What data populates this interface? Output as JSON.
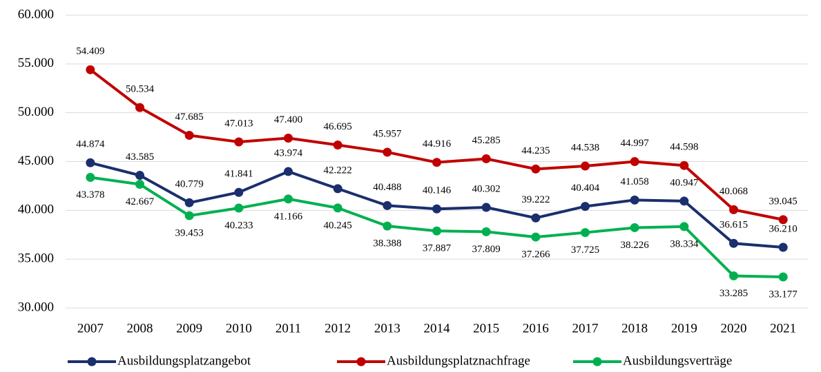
{
  "chart_data": {
    "type": "line",
    "categories": [
      "2007",
      "2008",
      "2009",
      "2010",
      "2011",
      "2012",
      "2013",
      "2014",
      "2015",
      "2016",
      "2017",
      "2018",
      "2019",
      "2020",
      "2021"
    ],
    "series": [
      {
        "name": "Ausbildungsplatzangebot",
        "color": "#1b2f6e",
        "values": [
          44874,
          43585,
          40779,
          41841,
          43974,
          42222,
          40488,
          40146,
          40302,
          39222,
          40404,
          41058,
          40947,
          36615,
          36210
        ],
        "value_labels": [
          "44.874",
          "43.585",
          "40.779",
          "41.841",
          "43.974",
          "42.222",
          "40.488",
          "40.146",
          "40.302",
          "39.222",
          "40.404",
          "41.058",
          "40.947",
          "36.615",
          "36.210"
        ]
      },
      {
        "name": "Ausbildungsplatznachfrage",
        "color": "#c00000",
        "values": [
          54409,
          50534,
          47685,
          47013,
          47400,
          46695,
          45957,
          44916,
          45285,
          44235,
          44538,
          44997,
          44598,
          40068,
          39045
        ],
        "value_labels": [
          "54.409",
          "50.534",
          "47.685",
          "47.013",
          "47.400",
          "46.695",
          "45.957",
          "44.916",
          "45.285",
          "44.235",
          "44.538",
          "44.997",
          "44.598",
          "40.068",
          "39.045"
        ]
      },
      {
        "name": "Ausbildungsverträge",
        "color": "#00b050",
        "values": [
          43378,
          42667,
          39453,
          40233,
          41166,
          40245,
          38388,
          37887,
          37809,
          37266,
          37725,
          38226,
          38334,
          33285,
          33177
        ],
        "value_labels": [
          "43.378",
          "42.667",
          "39.453",
          "40.233",
          "41.166",
          "40.245",
          "38.388",
          "37.887",
          "37.809",
          "37.266",
          "37.725",
          "38.226",
          "38.334",
          "33.285",
          "33.177"
        ]
      }
    ],
    "ylim": [
      30000,
      60000
    ],
    "yticks": [
      {
        "value": 30000,
        "label": "30.000"
      },
      {
        "value": 35000,
        "label": "35.000"
      },
      {
        "value": 40000,
        "label": "40.000"
      },
      {
        "value": 45000,
        "label": "45.000"
      },
      {
        "value": 50000,
        "label": "50.000"
      },
      {
        "value": 55000,
        "label": "55.000"
      },
      {
        "value": 60000,
        "label": "60.000"
      }
    ],
    "grid": true
  }
}
